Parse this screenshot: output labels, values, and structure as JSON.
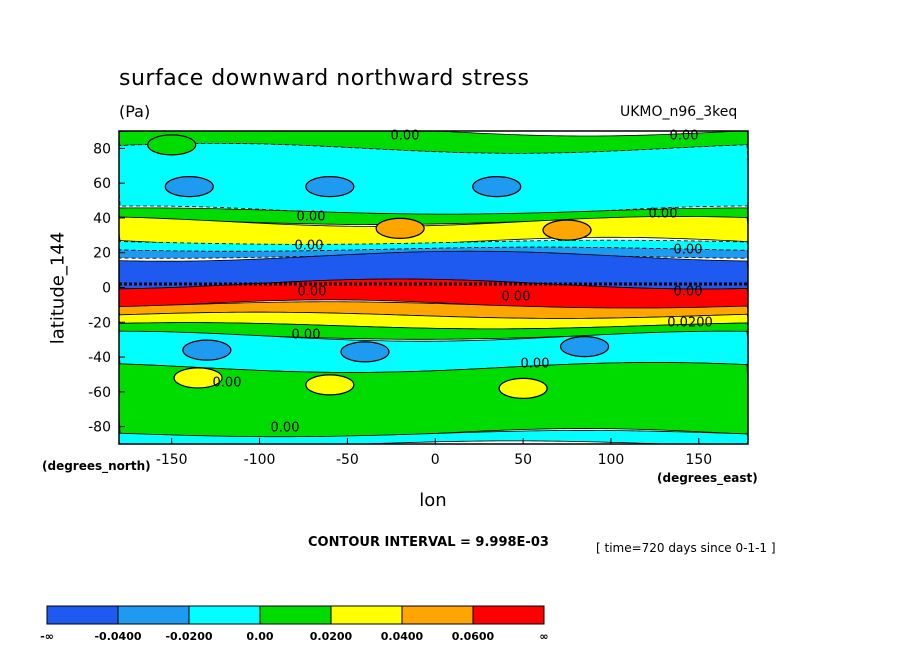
{
  "chart_data": {
    "type": "heatmap",
    "title": "surface downward northward stress",
    "units": "(Pa)",
    "model": "UKMO_n96_3keq",
    "xlabel": "lon",
    "ylabel": "latitude_144",
    "x_units": "(degrees_east)",
    "y_units": "(degrees_north)",
    "xlim": [
      -180,
      178
    ],
    "ylim": [
      -90,
      90
    ],
    "x_ticks": [
      -150,
      -100,
      -50,
      0,
      50,
      100,
      150
    ],
    "y_ticks": [
      80,
      60,
      40,
      20,
      0,
      -20,
      -40,
      -60,
      -80
    ],
    "contour_interval": "CONTOUR INTERVAL = 9.998E-03",
    "time": "[ time=720 days since 0-1-1 ]",
    "contour_labels": [
      "0.00",
      "0.00",
      "0.00",
      "0.00",
      "0.00",
      "0.00",
      "0.00",
      "0.00",
      "0.00",
      "0.00",
      "0.00",
      "0.00",
      "0.00",
      "0.0200"
    ],
    "legend": {
      "placement": "bottom",
      "bounds": [
        "-∞",
        "-0.0400",
        "-0.0200",
        "0.00",
        "0.0200",
        "0.0400",
        "0.0600",
        "∞"
      ],
      "colors": [
        "#1e5af0",
        "#1e9bf0",
        "#00ffff",
        "#00dc00",
        "#ffff00",
        "#ffa500",
        "#ff0000"
      ]
    },
    "bands": [
      {
        "lat": [
          80,
          90
        ],
        "level": "0.00 to 0.0200"
      },
      {
        "lat": [
          44,
          80
        ],
        "level": "-0.0200 to 0.00"
      },
      {
        "lat": [
          38,
          44
        ],
        "level": "0.00 to 0.0200"
      },
      {
        "lat": [
          26,
          38
        ],
        "level": "0.0200 to 0.0400"
      },
      {
        "lat": [
          22,
          26
        ],
        "level": "-0.0200 to 0.00"
      },
      {
        "lat": [
          18,
          22
        ],
        "level": "-0.0400 to -0.0200"
      },
      {
        "lat": [
          2,
          18
        ],
        "level": "below -0.0400"
      },
      {
        "lat": [
          -10,
          2
        ],
        "level": "above 0.0600"
      },
      {
        "lat": [
          -16,
          -10
        ],
        "level": "0.0400 to 0.0600"
      },
      {
        "lat": [
          -22,
          -16
        ],
        "level": "0.0200 to 0.0400"
      },
      {
        "lat": [
          -28,
          -22
        ],
        "level": "0.00 to 0.0200"
      },
      {
        "lat": [
          -46,
          -28
        ],
        "level": "-0.0200 to 0.00"
      },
      {
        "lat": [
          -84,
          -46
        ],
        "level": "0.00 to 0.0200"
      },
      {
        "lat": [
          -90,
          -84
        ],
        "level": "-0.0200 to 0.00"
      }
    ],
    "blobs": [
      {
        "lon": -20,
        "lat": 34,
        "level": "0.0400 to 0.0600"
      },
      {
        "lon": 75,
        "lat": 33,
        "level": "0.0400 to 0.0600"
      },
      {
        "lon": -135,
        "lat": -52,
        "level": "0.0200 to 0.0400"
      },
      {
        "lon": -60,
        "lat": -56,
        "level": "0.0200 to 0.0400"
      },
      {
        "lon": 50,
        "lat": -58,
        "level": "0.0200 to 0.0400"
      },
      {
        "lon": -130,
        "lat": -36,
        "level": "-0.0400 to -0.0200"
      },
      {
        "lon": -40,
        "lat": -37,
        "level": "-0.0400 to -0.0200"
      },
      {
        "lon": 85,
        "lat": -34,
        "level": "-0.0400 to -0.0200"
      },
      {
        "lon": -60,
        "lat": 58,
        "level": "-0.0400 to -0.0200"
      },
      {
        "lon": 35,
        "lat": 58,
        "level": "-0.0400 to -0.0200"
      },
      {
        "lon": -140,
        "lat": 58,
        "level": "-0.0400 to -0.0200"
      },
      {
        "lon": -150,
        "lat": 82,
        "level": "0.00 to 0.0200"
      }
    ]
  }
}
